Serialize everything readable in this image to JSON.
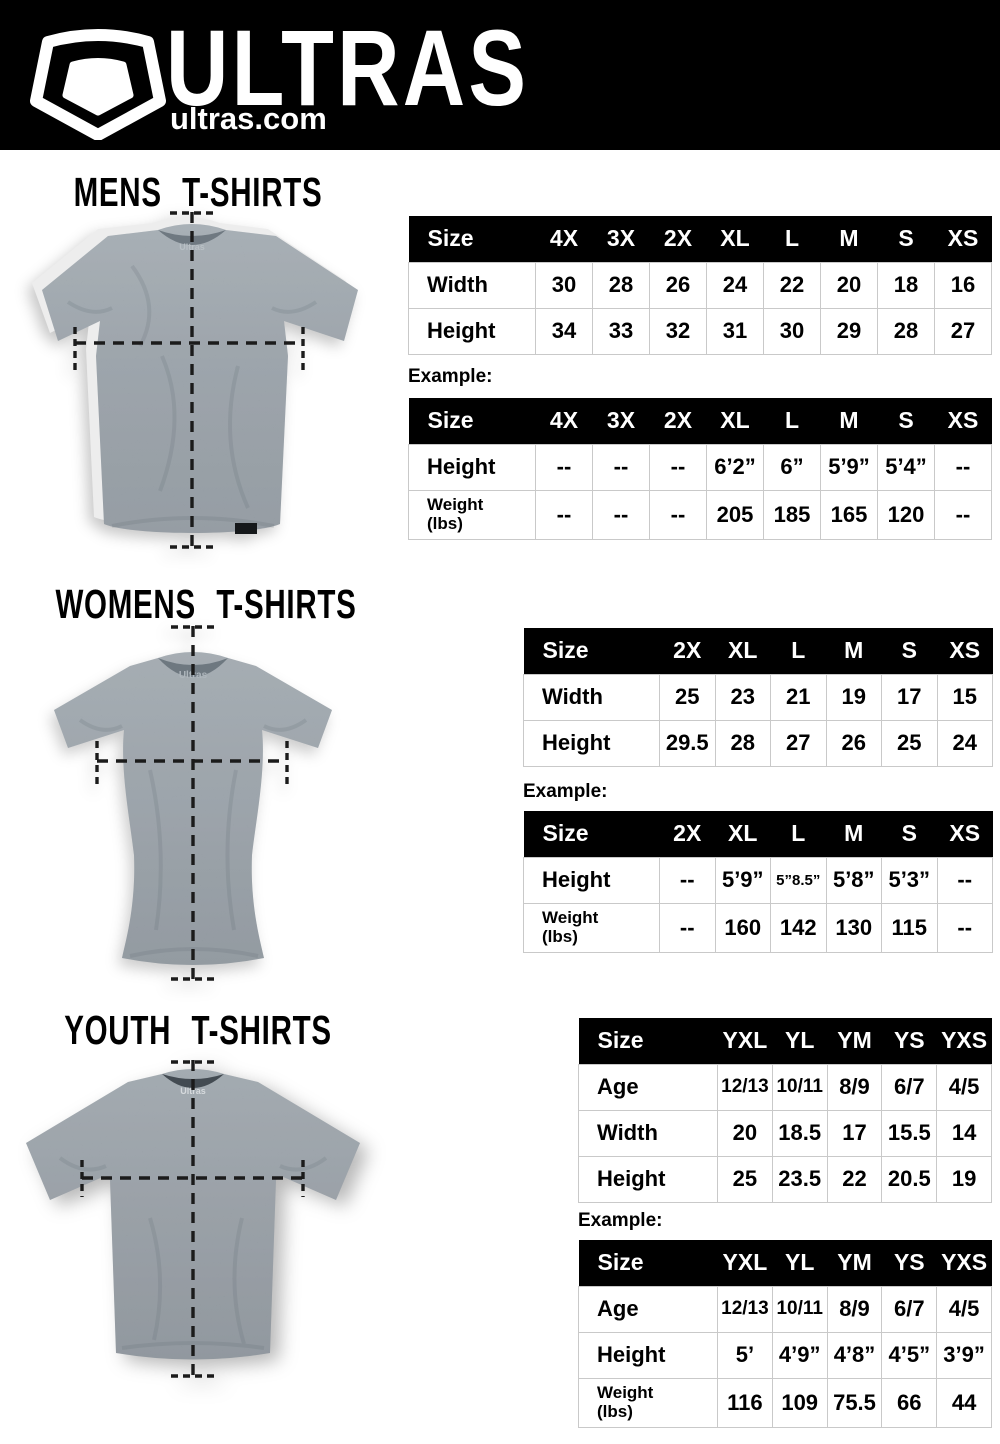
{
  "header": {
    "brand": "ULTRAS",
    "site": "ultras.com"
  },
  "colors": {
    "header_bg": "#000000",
    "table_header_bg": "#000000",
    "table_border": "#c9c9c9",
    "shirt_gray": "#8b949c",
    "shirt_gray_dark": "#6f7981",
    "guide_line": "#1b1b1b"
  },
  "sections": [
    {
      "id": "mens",
      "title": "MENS T-SHIRTS",
      "example_label": "Example:",
      "size_table": {
        "header": [
          "Size",
          "4X",
          "3X",
          "2X",
          "XL",
          "L",
          "M",
          "S",
          "XS"
        ],
        "rows": [
          {
            "label": "Width",
            "values": [
              "30",
              "28",
              "26",
              "24",
              "22",
              "20",
              "18",
              "16"
            ]
          },
          {
            "label": "Height",
            "values": [
              "34",
              "33",
              "32",
              "31",
              "30",
              "29",
              "28",
              "27"
            ]
          }
        ]
      },
      "example_table": {
        "header": [
          "Size",
          "4X",
          "3X",
          "2X",
          "XL",
          "L",
          "M",
          "S",
          "XS"
        ],
        "rows": [
          {
            "label": "Height",
            "values": [
              "--",
              "--",
              "--",
              "6’2”",
              "6”",
              "5’9”",
              "5’4”",
              "--"
            ]
          },
          {
            "label": "Weight\n(lbs)",
            "values": [
              "--",
              "--",
              "--",
              "205",
              "185",
              "165",
              "120",
              "--"
            ]
          }
        ]
      }
    },
    {
      "id": "womens",
      "title": "WOMENS T-SHIRTS",
      "example_label": "Example:",
      "size_table": {
        "header": [
          "Size",
          "2X",
          "XL",
          "L",
          "M",
          "S",
          "XS"
        ],
        "rows": [
          {
            "label": "Width",
            "values": [
              "25",
              "23",
              "21",
              "19",
              "17",
              "15"
            ]
          },
          {
            "label": "Height",
            "values": [
              "29.5",
              "28",
              "27",
              "26",
              "25",
              "24"
            ]
          }
        ]
      },
      "example_table": {
        "header": [
          "Size",
          "2X",
          "XL",
          "L",
          "M",
          "S",
          "XS"
        ],
        "rows": [
          {
            "label": "Height",
            "values": [
              "--",
              "5’9”",
              "5”8.5”",
              "5’8”",
              "5’3”",
              "--"
            ]
          },
          {
            "label": "Weight\n(lbs)",
            "values": [
              "--",
              "160",
              "142",
              "130",
              "115",
              "--"
            ]
          }
        ]
      }
    },
    {
      "id": "youth",
      "title": "YOUTH T-SHIRTS",
      "example_label": "Example:",
      "size_table": {
        "header": [
          "Size",
          "YXL",
          "YL",
          "YM",
          "YS",
          "YXS"
        ],
        "rows": [
          {
            "label": "Age",
            "values": [
              "12/13",
              "10/11",
              "8/9",
              "6/7",
              "4/5"
            ]
          },
          {
            "label": "Width",
            "values": [
              "20",
              "18.5",
              "17",
              "15.5",
              "14"
            ]
          },
          {
            "label": "Height",
            "values": [
              "25",
              "23.5",
              "22",
              "20.5",
              "19"
            ]
          }
        ]
      },
      "example_table": {
        "header": [
          "Size",
          "YXL",
          "YL",
          "YM",
          "YS",
          "YXS"
        ],
        "rows": [
          {
            "label": "Age",
            "values": [
              "12/13",
              "10/11",
              "8/9",
              "6/7",
              "4/5"
            ]
          },
          {
            "label": "Height",
            "values": [
              "5’",
              "4’9”",
              "4’8”",
              "4’5”",
              "3’9”"
            ]
          },
          {
            "label": "Weight\n(lbs)",
            "values": [
              "116",
              "109",
              "75.5",
              "66",
              "44"
            ]
          }
        ]
      }
    }
  ]
}
